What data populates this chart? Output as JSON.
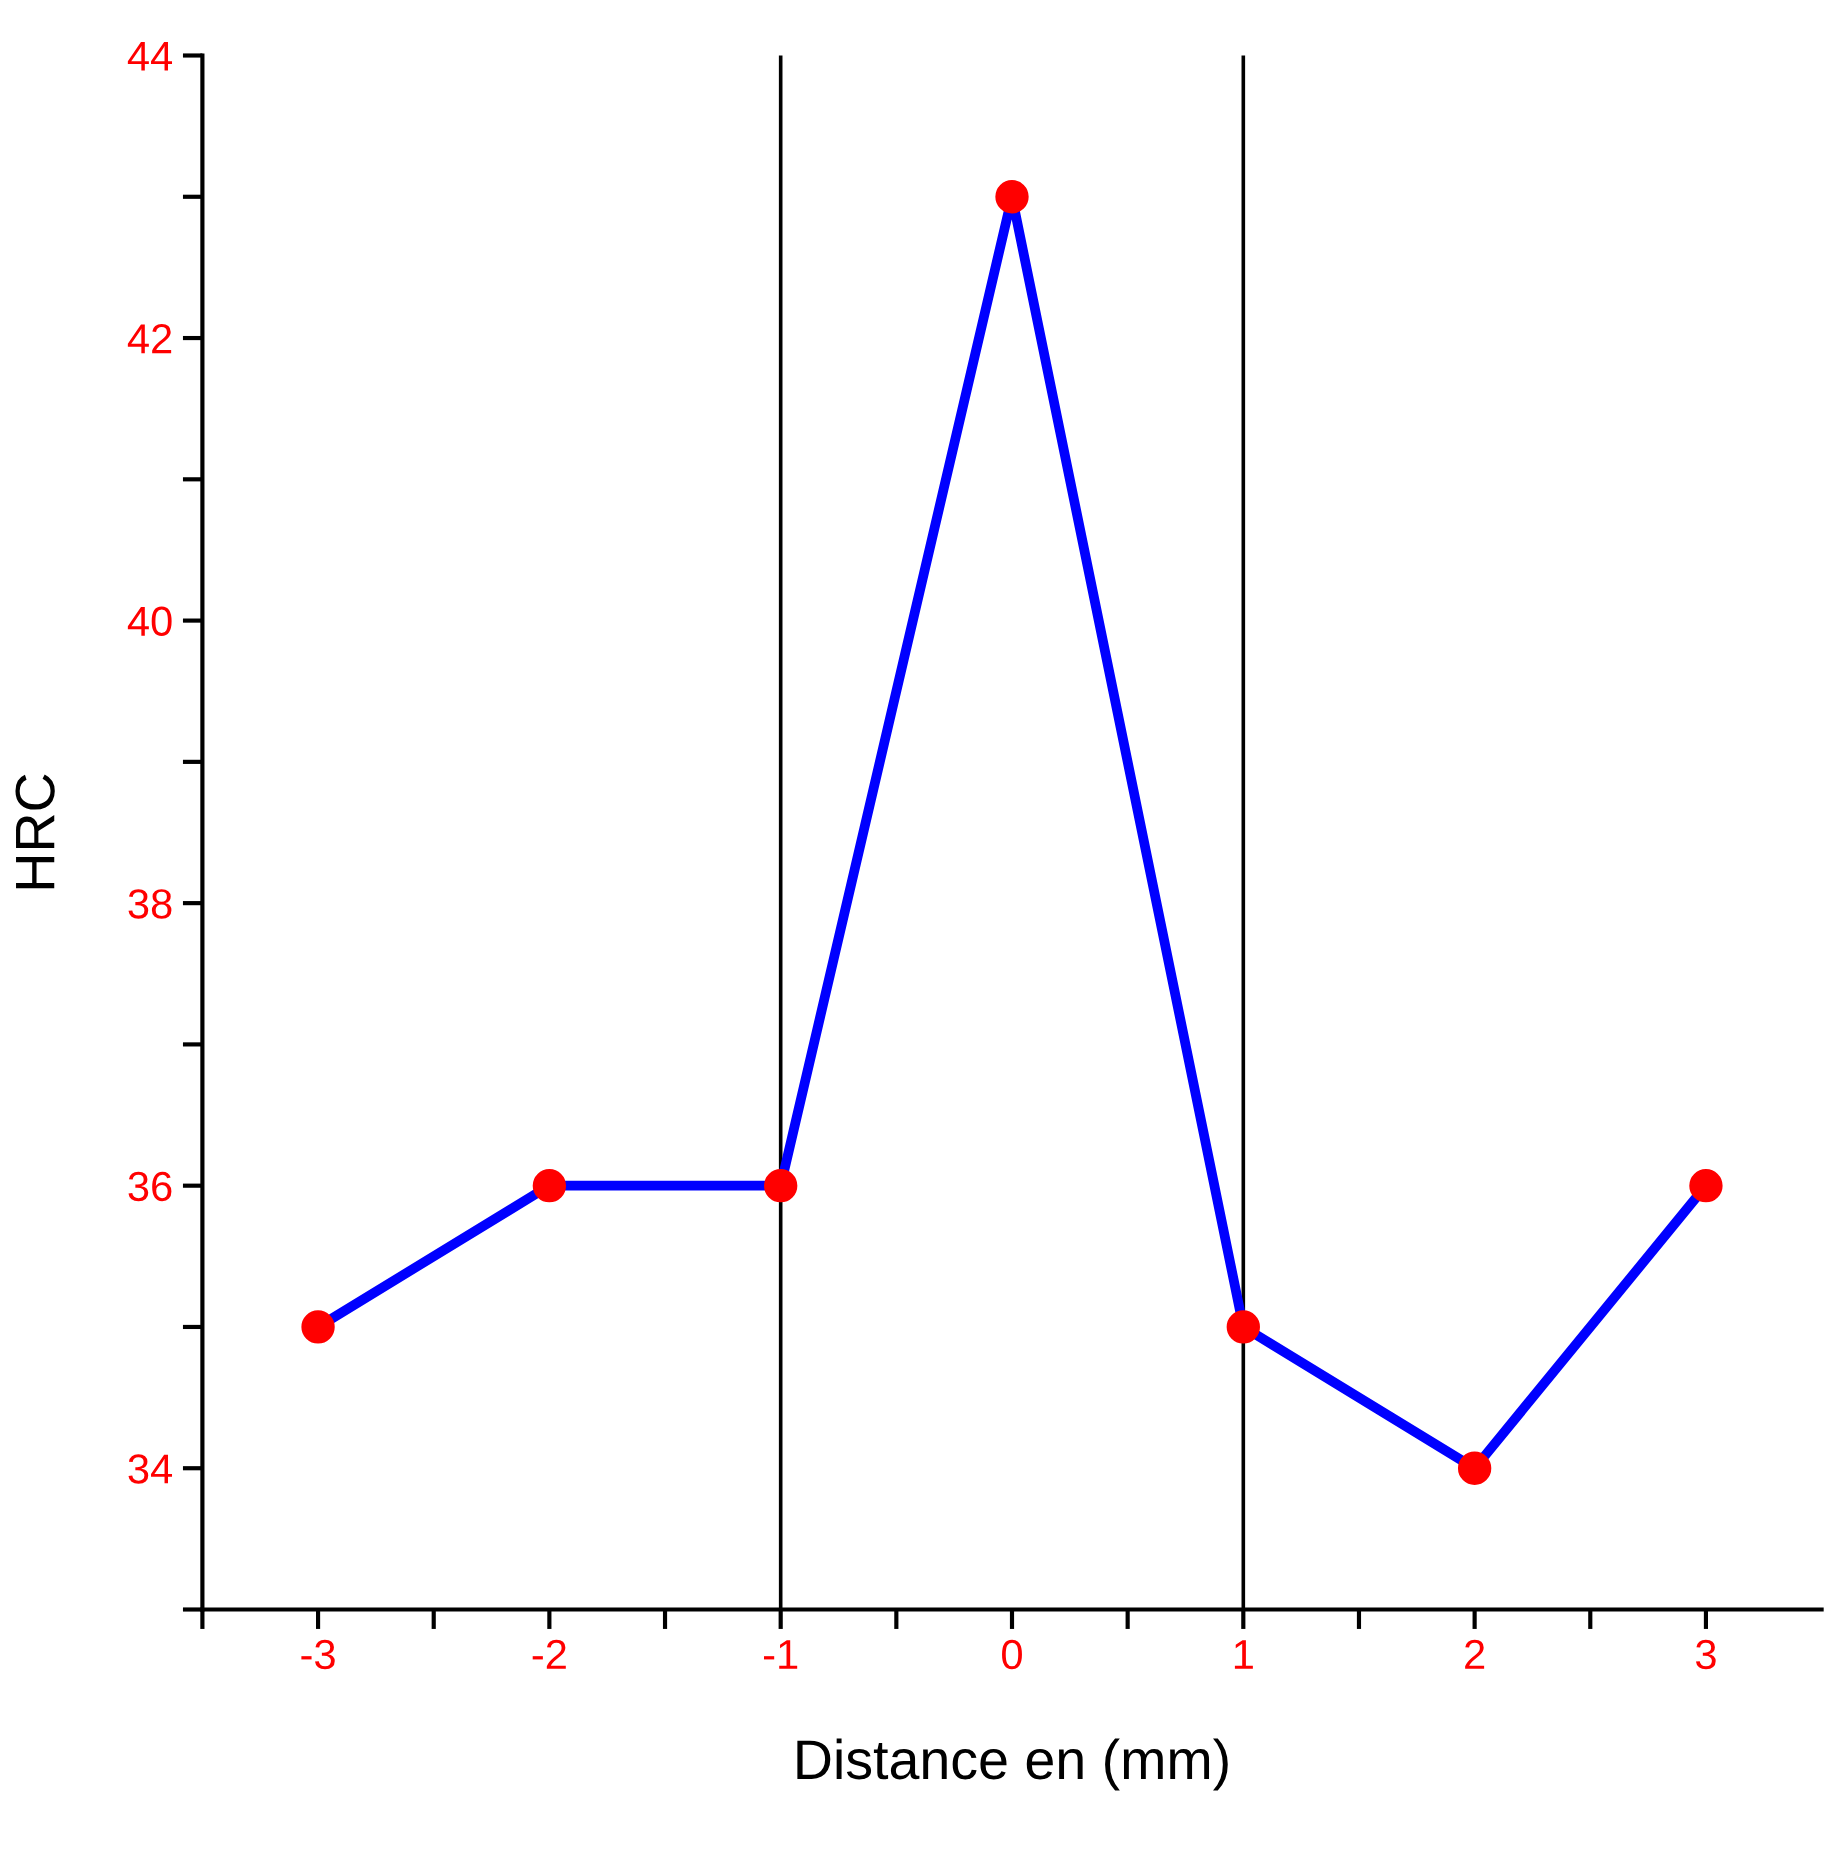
{
  "chart_data": {
    "type": "line",
    "xlabel": "Distance en (mm)",
    "ylabel": "HRC",
    "x": [
      -3,
      -2,
      -1,
      0,
      1,
      2,
      3
    ],
    "series": [
      {
        "color": "#0000ff",
        "values": [
          35,
          36,
          36,
          43,
          35,
          34,
          36
        ]
      }
    ],
    "marker": "circle",
    "line_style": "solid",
    "grid": false,
    "legend": false,
    "xlim": [
      -3.5,
      3.5
    ],
    "ylim": [
      33,
      44
    ],
    "xticks": [
      {
        "value": -3.5,
        "label": null
      },
      -3,
      {
        "value": -2.5,
        "label": null
      },
      -2,
      {
        "value": -1.5,
        "label": null
      },
      -1,
      {
        "value": -0.5,
        "label": null
      },
      0,
      {
        "value": 0.5,
        "label": null
      },
      1,
      {
        "value": 1.5,
        "label": null
      },
      2,
      {
        "value": 2.5,
        "label": null
      },
      3
    ],
    "yticks": [
      {
        "value": 33,
        "label": null
      },
      34,
      {
        "value": 35,
        "label": null
      },
      36,
      {
        "value": 37,
        "label": null
      },
      38,
      {
        "value": 39,
        "label": null
      },
      40,
      {
        "value": 41,
        "label": null
      },
      42,
      {
        "value": 43,
        "label": null
      },
      44
    ],
    "ref_lines": [
      {
        "axis": "x",
        "value": -1,
        "color": "#000000"
      },
      {
        "axis": "x",
        "value": 1,
        "color": "#000000"
      }
    ]
  }
}
